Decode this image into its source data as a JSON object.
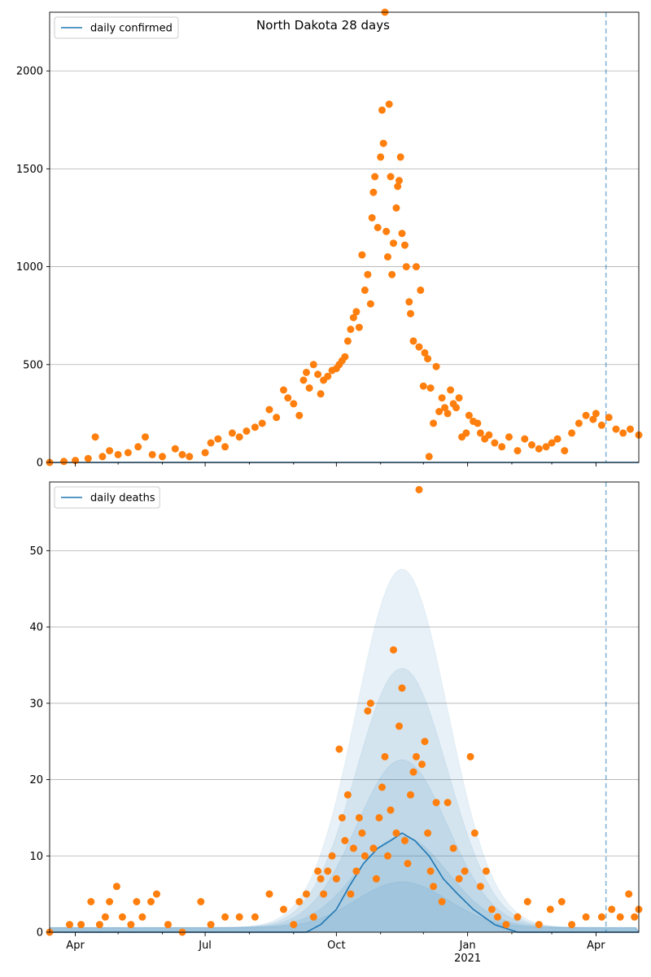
{
  "figure": {
    "title": "North Dakota 28 days"
  },
  "chart_data": [
    {
      "type": "scatter",
      "title": "North Dakota 28 days",
      "legend": {
        "entries": [
          "daily confirmed"
        ],
        "placement": "top-left"
      },
      "grid": "y",
      "xlim": [
        "2020-03-14",
        "2021-05-01"
      ],
      "ylim": [
        0,
        2300
      ],
      "yticks": [
        0,
        500,
        1000,
        1500,
        2000
      ],
      "xtick_labels": [],
      "vline": "2021-04-08",
      "line": {
        "name": "daily confirmed",
        "y": [
          0,
          0
        ]
      },
      "points": [
        [
          "2020-03-14",
          0
        ],
        [
          "2020-03-24",
          5
        ],
        [
          "2020-04-01",
          10
        ],
        [
          "2020-04-10",
          20
        ],
        [
          "2020-04-15",
          130
        ],
        [
          "2020-04-20",
          30
        ],
        [
          "2020-04-25",
          60
        ],
        [
          "2020-05-01",
          40
        ],
        [
          "2020-05-08",
          50
        ],
        [
          "2020-05-15",
          80
        ],
        [
          "2020-05-20",
          130
        ],
        [
          "2020-05-25",
          40
        ],
        [
          "2020-06-01",
          30
        ],
        [
          "2020-06-10",
          70
        ],
        [
          "2020-06-15",
          40
        ],
        [
          "2020-06-20",
          30
        ],
        [
          "2020-07-01",
          50
        ],
        [
          "2020-07-05",
          100
        ],
        [
          "2020-07-10",
          120
        ],
        [
          "2020-07-15",
          80
        ],
        [
          "2020-07-20",
          150
        ],
        [
          "2020-07-25",
          130
        ],
        [
          "2020-07-30",
          160
        ],
        [
          "2020-08-05",
          180
        ],
        [
          "2020-08-10",
          200
        ],
        [
          "2020-08-15",
          270
        ],
        [
          "2020-08-20",
          230
        ],
        [
          "2020-08-25",
          370
        ],
        [
          "2020-08-28",
          330
        ],
        [
          "2020-09-01",
          300
        ],
        [
          "2020-09-05",
          240
        ],
        [
          "2020-09-08",
          420
        ],
        [
          "2020-09-10",
          460
        ],
        [
          "2020-09-12",
          380
        ],
        [
          "2020-09-15",
          500
        ],
        [
          "2020-09-18",
          450
        ],
        [
          "2020-09-20",
          350
        ],
        [
          "2020-09-22",
          420
        ],
        [
          "2020-09-25",
          440
        ],
        [
          "2020-09-28",
          470
        ],
        [
          "2020-10-01",
          480
        ],
        [
          "2020-10-03",
          500
        ],
        [
          "2020-10-05",
          520
        ],
        [
          "2020-10-07",
          540
        ],
        [
          "2020-10-09",
          620
        ],
        [
          "2020-10-11",
          680
        ],
        [
          "2020-10-13",
          740
        ],
        [
          "2020-10-15",
          770
        ],
        [
          "2020-10-17",
          690
        ],
        [
          "2020-10-19",
          1060
        ],
        [
          "2020-10-21",
          880
        ],
        [
          "2020-10-23",
          960
        ],
        [
          "2020-10-25",
          810
        ],
        [
          "2020-10-26",
          1250
        ],
        [
          "2020-10-27",
          1380
        ],
        [
          "2020-10-28",
          1460
        ],
        [
          "2020-10-30",
          1200
        ],
        [
          "2020-11-01",
          1560
        ],
        [
          "2020-11-02",
          1800
        ],
        [
          "2020-11-03",
          1630
        ],
        [
          "2020-11-05",
          1180
        ],
        [
          "2020-11-06",
          1050
        ],
        [
          "2020-11-07",
          1830
        ],
        [
          "2020-11-08",
          1460
        ],
        [
          "2020-11-09",
          960
        ],
        [
          "2020-11-10",
          1120
        ],
        [
          "2020-11-12",
          1300
        ],
        [
          "2020-11-13",
          1410
        ],
        [
          "2020-11-14",
          1440
        ],
        [
          "2020-11-15",
          1560
        ],
        [
          "2020-11-16",
          1170
        ],
        [
          "2020-11-18",
          1110
        ],
        [
          "2020-11-19",
          1000
        ],
        [
          "2020-11-21",
          820
        ],
        [
          "2020-11-22",
          760
        ],
        [
          "2020-11-24",
          620
        ],
        [
          "2020-11-26",
          1000
        ],
        [
          "2020-11-28",
          590
        ],
        [
          "2020-11-29",
          880
        ],
        [
          "2020-12-01",
          390
        ],
        [
          "2020-12-02",
          560
        ],
        [
          "2020-12-04",
          530
        ],
        [
          "2020-12-06",
          380
        ],
        [
          "2020-12-08",
          200
        ],
        [
          "2020-12-10",
          490
        ],
        [
          "2020-12-12",
          260
        ],
        [
          "2020-12-14",
          330
        ],
        [
          "2020-12-16",
          280
        ],
        [
          "2020-12-18",
          250
        ],
        [
          "2020-12-20",
          370
        ],
        [
          "2020-12-22",
          300
        ],
        [
          "2020-12-24",
          280
        ],
        [
          "2020-12-26",
          330
        ],
        [
          "2020-12-28",
          130
        ],
        [
          "2020-12-31",
          150
        ],
        [
          "2021-01-02",
          240
        ],
        [
          "2021-01-05",
          210
        ],
        [
          "2021-01-08",
          200
        ],
        [
          "2021-01-10",
          150
        ],
        [
          "2021-01-13",
          120
        ],
        [
          "2021-01-16",
          140
        ],
        [
          "2021-01-20",
          100
        ],
        [
          "2021-01-25",
          80
        ],
        [
          "2021-01-30",
          130
        ],
        [
          "2021-02-05",
          60
        ],
        [
          "2021-02-10",
          120
        ],
        [
          "2021-02-15",
          90
        ],
        [
          "2021-02-20",
          70
        ],
        [
          "2021-02-25",
          80
        ],
        [
          "2021-03-01",
          100
        ],
        [
          "2021-03-05",
          120
        ],
        [
          "2021-03-10",
          60
        ],
        [
          "2021-03-15",
          150
        ],
        [
          "2021-03-20",
          200
        ],
        [
          "2021-03-25",
          240
        ],
        [
          "2021-03-30",
          220
        ],
        [
          "2021-04-01",
          250
        ],
        [
          "2021-04-05",
          190
        ],
        [
          "2021-04-10",
          230
        ],
        [
          "2021-04-15",
          170
        ],
        [
          "2021-04-20",
          150
        ],
        [
          "2021-04-25",
          170
        ],
        [
          "2021-05-01",
          140
        ],
        [
          "2020-12-05",
          30
        ],
        [
          "2020-11-04",
          2300
        ]
      ]
    },
    {
      "type": "scatter",
      "legend": {
        "entries": [
          "daily deaths"
        ],
        "placement": "top-left"
      },
      "grid": "y",
      "xlim": [
        "2020-03-14",
        "2021-05-01"
      ],
      "ylim": [
        0,
        59
      ],
      "yticks": [
        0,
        10,
        20,
        30,
        40,
        50
      ],
      "xtick_labels": [
        "Apr",
        "Jul",
        "Oct",
        "Jan",
        "2021",
        "Apr"
      ],
      "vline": "2021-04-08",
      "line": {
        "name": "daily deaths",
        "points": [
          [
            "2020-03-14",
            0
          ],
          [
            "2020-09-10",
            0
          ],
          [
            "2020-09-20",
            1
          ],
          [
            "2020-10-01",
            3
          ],
          [
            "2020-10-10",
            6
          ],
          [
            "2020-10-20",
            9
          ],
          [
            "2020-10-30",
            11
          ],
          [
            "2020-11-08",
            12
          ],
          [
            "2020-11-16",
            13
          ],
          [
            "2020-11-25",
            12
          ],
          [
            "2020-12-05",
            10
          ],
          [
            "2020-12-15",
            7
          ],
          [
            "2020-12-25",
            5
          ],
          [
            "2021-01-05",
            3
          ],
          [
            "2021-01-20",
            1
          ],
          [
            "2021-02-05",
            0
          ],
          [
            "2021-05-01",
            0
          ]
        ]
      },
      "band_peaks": [
        6,
        12,
        22,
        34,
        47
      ],
      "points": [
        [
          "2020-03-14",
          0
        ],
        [
          "2020-03-28",
          1
        ],
        [
          "2020-04-05",
          1
        ],
        [
          "2020-04-12",
          4
        ],
        [
          "2020-04-18",
          1
        ],
        [
          "2020-04-22",
          2
        ],
        [
          "2020-04-25",
          4
        ],
        [
          "2020-04-30",
          6
        ],
        [
          "2020-05-04",
          2
        ],
        [
          "2020-05-10",
          1
        ],
        [
          "2020-05-14",
          4
        ],
        [
          "2020-05-18",
          2
        ],
        [
          "2020-05-24",
          4
        ],
        [
          "2020-05-28",
          5
        ],
        [
          "2020-06-05",
          1
        ],
        [
          "2020-06-15",
          0
        ],
        [
          "2020-06-28",
          4
        ],
        [
          "2020-07-05",
          1
        ],
        [
          "2020-07-15",
          2
        ],
        [
          "2020-07-25",
          2
        ],
        [
          "2020-08-05",
          2
        ],
        [
          "2020-08-15",
          5
        ],
        [
          "2020-08-25",
          3
        ],
        [
          "2020-09-01",
          1
        ],
        [
          "2020-09-05",
          4
        ],
        [
          "2020-09-10",
          5
        ],
        [
          "2020-09-15",
          2
        ],
        [
          "2020-09-18",
          8
        ],
        [
          "2020-09-20",
          7
        ],
        [
          "2020-09-22",
          5
        ],
        [
          "2020-09-25",
          8
        ],
        [
          "2020-09-28",
          10
        ],
        [
          "2020-10-01",
          7
        ],
        [
          "2020-10-03",
          24
        ],
        [
          "2020-10-05",
          15
        ],
        [
          "2020-10-07",
          12
        ],
        [
          "2020-10-09",
          18
        ],
        [
          "2020-10-11",
          5
        ],
        [
          "2020-10-13",
          11
        ],
        [
          "2020-10-15",
          8
        ],
        [
          "2020-10-17",
          15
        ],
        [
          "2020-10-19",
          13
        ],
        [
          "2020-10-21",
          10
        ],
        [
          "2020-10-23",
          29
        ],
        [
          "2020-10-25",
          30
        ],
        [
          "2020-10-27",
          11
        ],
        [
          "2020-10-29",
          7
        ],
        [
          "2020-10-31",
          15
        ],
        [
          "2020-11-02",
          19
        ],
        [
          "2020-11-04",
          23
        ],
        [
          "2020-11-06",
          10
        ],
        [
          "2020-11-08",
          16
        ],
        [
          "2020-11-10",
          37
        ],
        [
          "2020-11-12",
          13
        ],
        [
          "2020-11-14",
          27
        ],
        [
          "2020-11-16",
          32
        ],
        [
          "2020-11-18",
          12
        ],
        [
          "2020-11-20",
          9
        ],
        [
          "2020-11-22",
          18
        ],
        [
          "2020-11-24",
          21
        ],
        [
          "2020-11-26",
          23
        ],
        [
          "2020-11-28",
          58
        ],
        [
          "2020-11-30",
          22
        ],
        [
          "2020-12-02",
          25
        ],
        [
          "2020-12-04",
          13
        ],
        [
          "2020-12-06",
          8
        ],
        [
          "2020-12-08",
          6
        ],
        [
          "2020-12-10",
          17
        ],
        [
          "2020-12-14",
          4
        ],
        [
          "2020-12-18",
          17
        ],
        [
          "2020-12-22",
          11
        ],
        [
          "2020-12-26",
          7
        ],
        [
          "2020-12-30",
          8
        ],
        [
          "2021-01-03",
          23
        ],
        [
          "2021-01-06",
          13
        ],
        [
          "2021-01-10",
          6
        ],
        [
          "2021-01-14",
          8
        ],
        [
          "2021-01-18",
          3
        ],
        [
          "2021-01-22",
          2
        ],
        [
          "2021-01-28",
          1
        ],
        [
          "2021-02-05",
          2
        ],
        [
          "2021-02-12",
          4
        ],
        [
          "2021-02-20",
          1
        ],
        [
          "2021-02-28",
          3
        ],
        [
          "2021-03-08",
          4
        ],
        [
          "2021-03-15",
          1
        ],
        [
          "2021-03-25",
          2
        ],
        [
          "2021-04-05",
          2
        ],
        [
          "2021-04-12",
          3
        ],
        [
          "2021-04-18",
          2
        ],
        [
          "2021-04-24",
          5
        ],
        [
          "2021-04-28",
          2
        ],
        [
          "2021-05-01",
          3
        ]
      ]
    }
  ],
  "colors": {
    "line": "#1f77b4",
    "points": "#ff7f0e",
    "band": "#1f77b4",
    "grid": "#b0b0b0",
    "vline": "#1f77b4"
  }
}
